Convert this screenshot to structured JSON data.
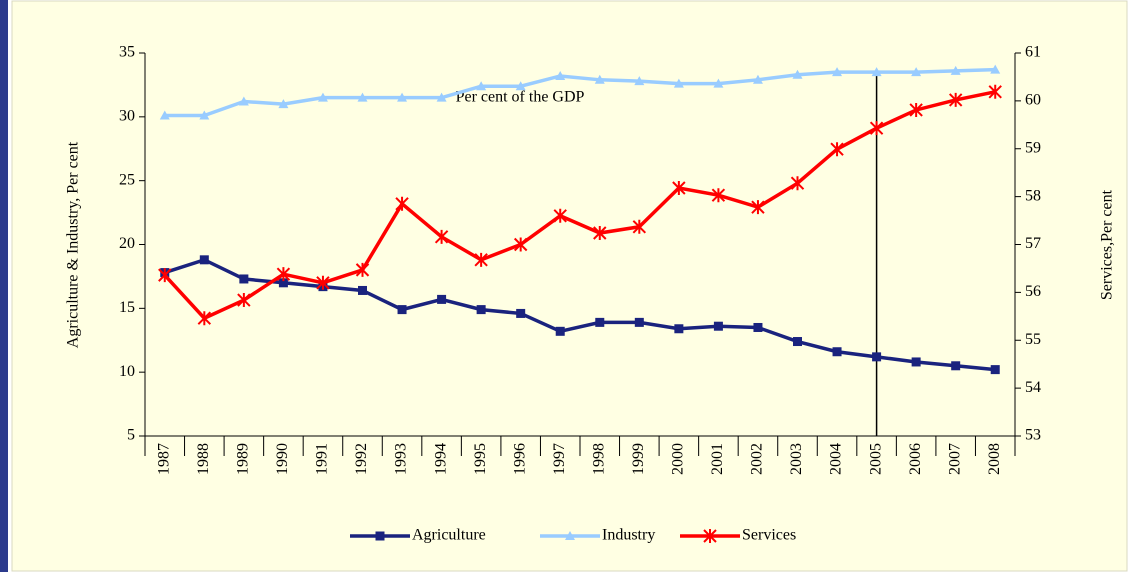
{
  "chart_data": {
    "type": "line",
    "annotation": "Per cent of the GDP",
    "ylabel": "Agriculture & Industry, Per cent",
    "y2label": "Services,Per cent",
    "categories": [
      "1987",
      "1988",
      "1989",
      "1990",
      "1991",
      "1992",
      "1993",
      "1994",
      "1995",
      "1996",
      "1997",
      "1998",
      "1999",
      "2000",
      "2001",
      "2002",
      "2003",
      "2004",
      "2005",
      "2006",
      "2007",
      "2008"
    ],
    "series": [
      {
        "name": "Agriculture",
        "color": "#1a237e",
        "marker": "square",
        "axis": "y",
        "values": [
          17.8,
          18.8,
          17.3,
          17.0,
          16.7,
          16.4,
          14.9,
          15.7,
          14.9,
          14.6,
          13.2,
          13.9,
          13.9,
          13.4,
          13.6,
          13.5,
          12.4,
          11.6,
          11.2,
          10.8,
          10.5,
          10.2
        ]
      },
      {
        "name": "Industry",
        "color": "#99ccff",
        "marker": "triangle",
        "axis": "y",
        "values": [
          30.1,
          30.1,
          31.2,
          31.0,
          31.5,
          31.5,
          31.5,
          31.5,
          32.4,
          32.4,
          33.2,
          32.9,
          32.8,
          32.6,
          32.6,
          32.9,
          33.3,
          33.5,
          33.5,
          33.5,
          33.6,
          33.7
        ]
      },
      {
        "name": "Services",
        "color": "#ff0000",
        "marker": "asterisk",
        "axis": "y2",
        "values": [
          56.36,
          55.46,
          55.84,
          56.38,
          56.2,
          56.47,
          57.85,
          57.16,
          56.68,
          57.0,
          57.6,
          57.24,
          57.37,
          58.18,
          58.03,
          57.78,
          58.28,
          58.99,
          59.43,
          59.81,
          60.02,
          60.19
        ]
      }
    ],
    "ylim": [
      5,
      35
    ],
    "yticks": [
      5,
      10,
      15,
      20,
      25,
      30,
      35
    ],
    "y2lim": [
      53,
      61
    ],
    "y2ticks": [
      53,
      54,
      55,
      56,
      57,
      58,
      59,
      60,
      61
    ],
    "vline_category": 18,
    "grid": false,
    "legend": "bottom"
  }
}
